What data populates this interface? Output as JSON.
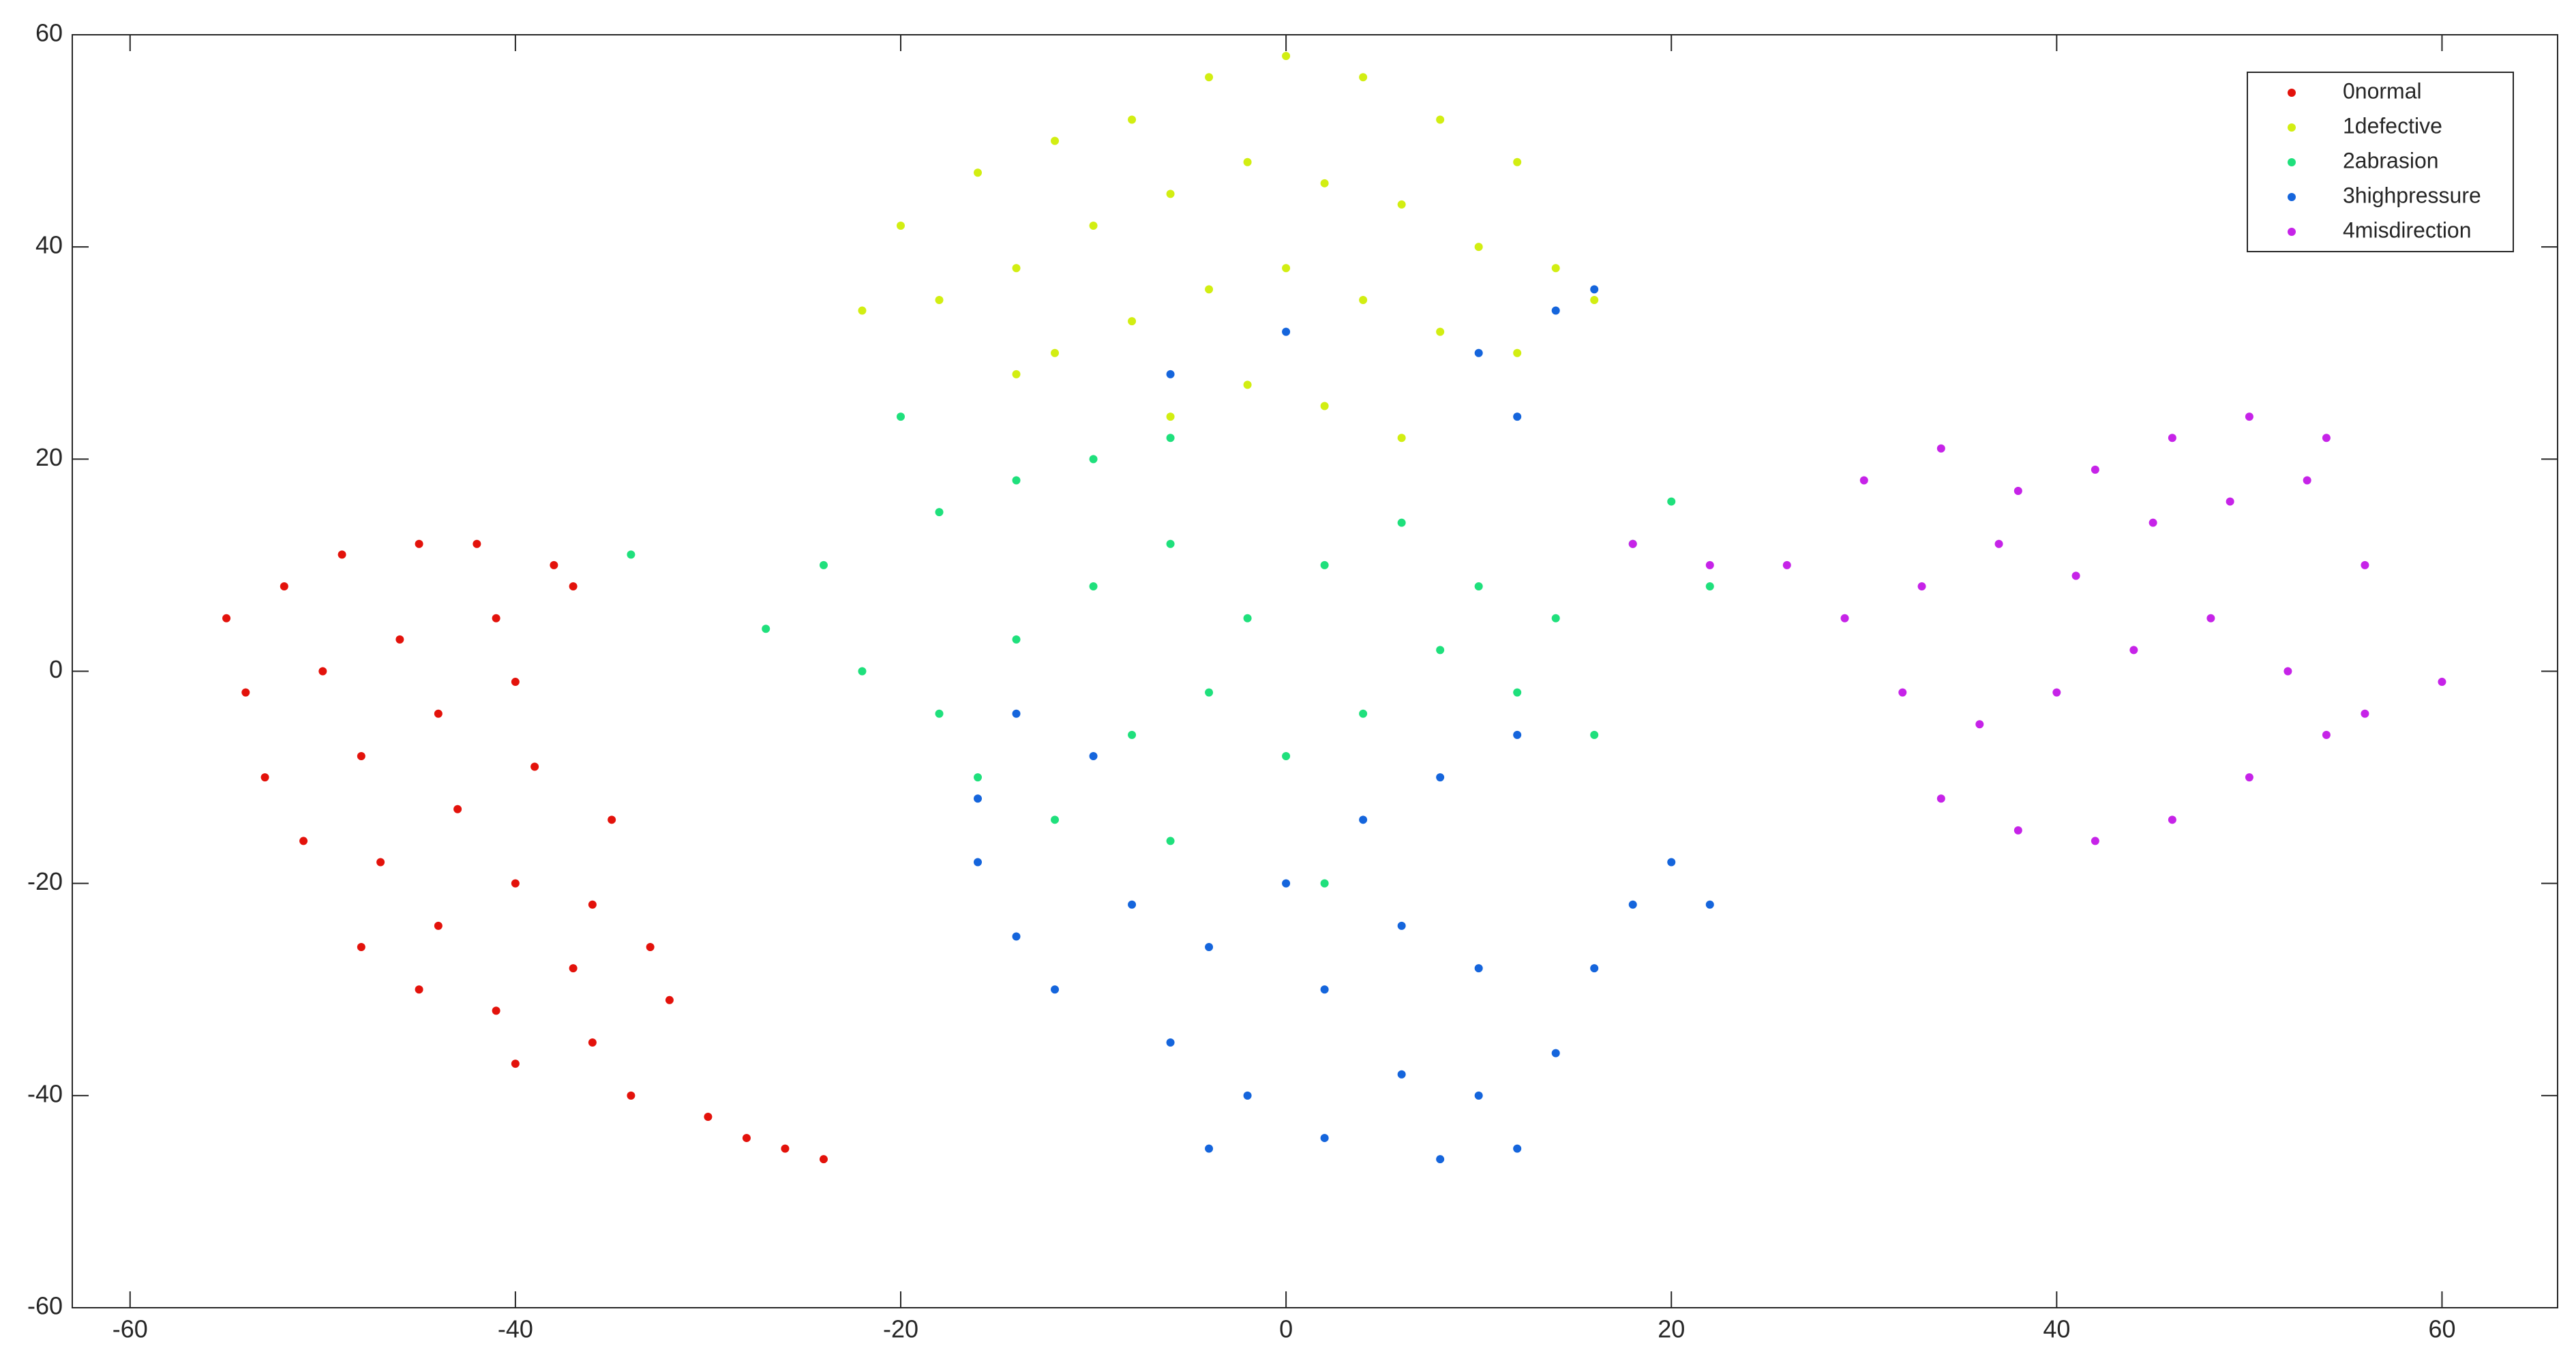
{
  "chart_data": {
    "type": "scatter",
    "xlim": [
      -63,
      66
    ],
    "ylim": [
      -60,
      60
    ],
    "xticks": [
      -60,
      -40,
      -20,
      0,
      20,
      40,
      60
    ],
    "yticks": [
      -60,
      -40,
      -20,
      0,
      20,
      40,
      60
    ],
    "grid": false,
    "legend": "upper right",
    "series": [
      {
        "name": "0normal",
        "color": "#e3120b",
        "x": [
          -55,
          -52,
          -49,
          -45,
          -42,
          -38,
          -54,
          -50,
          -46,
          -41,
          -37,
          -53,
          -48,
          -44,
          -40,
          -51,
          -47,
          -43,
          -39,
          -35,
          -48,
          -44,
          -40,
          -36,
          -45,
          -41,
          -37,
          -33,
          -40,
          -36,
          -32,
          -34,
          -30,
          -28,
          -26,
          -24
        ],
        "y": [
          5,
          8,
          11,
          12,
          12,
          10,
          -2,
          0,
          3,
          5,
          8,
          -10,
          -8,
          -4,
          -1,
          -16,
          -18,
          -13,
          -9,
          -14,
          -26,
          -24,
          -20,
          -22,
          -30,
          -32,
          -28,
          -26,
          -37,
          -35,
          -31,
          -40,
          -42,
          -44,
          -45,
          -46
        ]
      },
      {
        "name": "1defective",
        "color": "#d2ee12",
        "x": [
          -20,
          -16,
          -12,
          -8,
          -4,
          0,
          4,
          8,
          12,
          -18,
          -14,
          -10,
          -6,
          -2,
          2,
          6,
          10,
          14,
          -12,
          -8,
          -4,
          0,
          4,
          8,
          12,
          -6,
          -2,
          2,
          6,
          16,
          -22,
          -14
        ],
        "y": [
          42,
          47,
          50,
          52,
          56,
          58,
          56,
          52,
          48,
          35,
          38,
          42,
          45,
          48,
          46,
          44,
          40,
          38,
          30,
          33,
          36,
          38,
          35,
          32,
          30,
          24,
          27,
          25,
          22,
          35,
          34,
          28
        ]
      },
      {
        "name": "2abrasion",
        "color": "#1fe07c",
        "x": [
          -27,
          -24,
          -20,
          -18,
          -14,
          -10,
          -6,
          -22,
          -18,
          -14,
          -10,
          -6,
          -2,
          2,
          6,
          10,
          14,
          18,
          20,
          -16,
          -12,
          -8,
          -4,
          0,
          4,
          8,
          12,
          16,
          -6,
          2,
          22,
          -34
        ],
        "y": [
          4,
          10,
          24,
          15,
          18,
          20,
          22,
          0,
          -4,
          3,
          8,
          12,
          5,
          10,
          14,
          8,
          5,
          12,
          16,
          -10,
          -14,
          -6,
          -2,
          -8,
          -4,
          2,
          -2,
          -6,
          -16,
          -20,
          8,
          11
        ]
      },
      {
        "name": "3highpressure",
        "color": "#1565dc",
        "x": [
          -16,
          -14,
          -12,
          -8,
          -6,
          -4,
          0,
          2,
          -2,
          -4,
          2,
          6,
          8,
          10,
          12,
          14,
          16,
          18,
          20,
          22,
          10,
          6,
          4,
          8,
          12,
          -10,
          -14,
          -16,
          14,
          10,
          16,
          0,
          -6,
          12
        ],
        "y": [
          -18,
          -25,
          -30,
          -22,
          -35,
          -26,
          -20,
          -30,
          -40,
          -45,
          -44,
          -38,
          -46,
          -40,
          -45,
          -36,
          -28,
          -22,
          -18,
          -22,
          -28,
          -24,
          -14,
          -10,
          -6,
          -8,
          -4,
          -12,
          34,
          30,
          36,
          32,
          28,
          24
        ]
      },
      {
        "name": "4misdirection",
        "color": "#c623e8",
        "x": [
          26,
          30,
          34,
          38,
          42,
          46,
          50,
          54,
          29,
          33,
          37,
          41,
          45,
          49,
          53,
          56,
          32,
          36,
          40,
          44,
          48,
          52,
          56,
          60,
          34,
          38,
          42,
          46,
          50,
          54,
          18,
          22
        ],
        "y": [
          10,
          18,
          21,
          17,
          19,
          22,
          24,
          22,
          5,
          8,
          12,
          9,
          14,
          16,
          18,
          10,
          -2,
          -5,
          -2,
          2,
          5,
          0,
          -4,
          -1,
          -12,
          -15,
          -16,
          -14,
          -10,
          -6,
          12,
          10
        ]
      }
    ]
  }
}
